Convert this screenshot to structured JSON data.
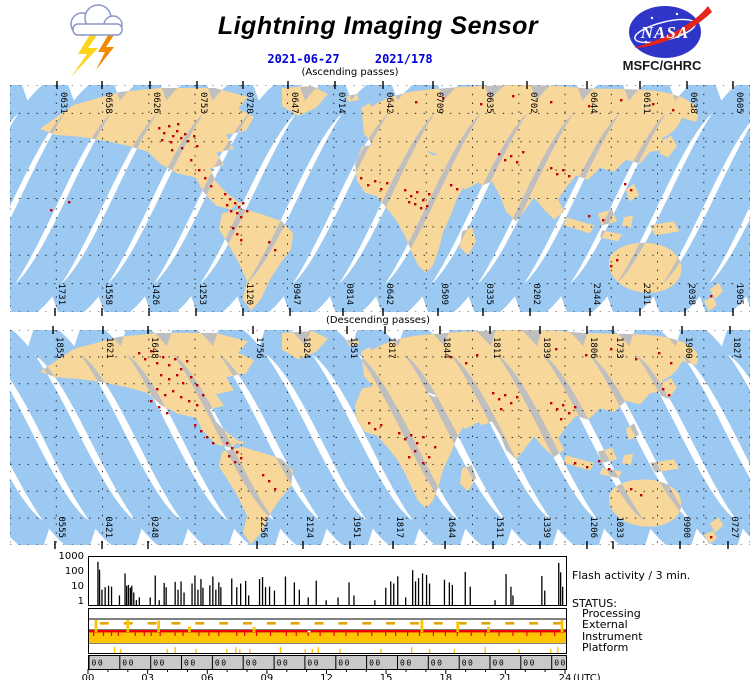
{
  "header": {
    "title": "Lightning Imaging Sensor",
    "date_iso": "2021-06-27",
    "date_doy": "2021/178",
    "agency": "MSFC/GHRC",
    "logo_text": "NASA"
  },
  "labels": {
    "status_heading": "STATUS:"
  },
  "colors": {
    "swath_blue": "#9CC9F2",
    "land_swath": "#F8D79B",
    "land_gray": "#BFBFBF",
    "lightning_red": "#C30000",
    "gold": "#FFC400",
    "gold_dark": "#DFA600",
    "red_line": "#EE0000",
    "band_gray": "#C9C9C9",
    "date_blue": "#0000D8",
    "nasa_blue": "#2E35C8",
    "nasa_red": "#E5251C",
    "bolt_yellow": "#FFD21C",
    "bolt_orange": "#F08A00",
    "cloud_fill": "#FFFFFF",
    "cloud_stroke": "#8B95C9"
  },
  "maps": {
    "ascending": {
      "caption": "(Ascending passes)",
      "direction": "asc",
      "top_labels": [
        [
          "0631",
          47
        ],
        [
          "0658",
          92
        ],
        [
          "0626",
          140
        ],
        [
          "0753",
          187
        ],
        [
          "0720",
          233
        ],
        [
          "0647",
          278
        ],
        [
          "0714",
          325
        ],
        [
          "0642",
          373
        ],
        [
          "0709",
          423
        ],
        [
          "0635",
          473
        ],
        [
          "0702",
          517
        ],
        [
          "0644",
          577
        ],
        [
          "0611",
          630
        ],
        [
          "0638",
          677
        ],
        [
          "0605",
          723
        ]
      ],
      "bottom_labels": [
        [
          "1731",
          45
        ],
        [
          "1558",
          92
        ],
        [
          "1426",
          139
        ],
        [
          "1253",
          186
        ],
        [
          "1120",
          233
        ],
        [
          "0947",
          280
        ],
        [
          "0814",
          333
        ],
        [
          "0642",
          373
        ],
        [
          "0509",
          428
        ],
        [
          "0335",
          473
        ],
        [
          "0202",
          520
        ],
        [
          "2344",
          580
        ],
        [
          "2211",
          630
        ],
        [
          "2038",
          675
        ],
        [
          "1905",
          723
        ]
      ],
      "lightning": [
        [
          148,
          42
        ],
        [
          153,
          47
        ],
        [
          158,
          40
        ],
        [
          162,
          50
        ],
        [
          166,
          45
        ],
        [
          170,
          52
        ],
        [
          174,
          48
        ],
        [
          160,
          56
        ],
        [
          151,
          54
        ],
        [
          177,
          55
        ],
        [
          183,
          50
        ],
        [
          167,
          38
        ],
        [
          171,
          62
        ],
        [
          161,
          64
        ],
        [
          186,
          60
        ],
        [
          180,
          74
        ],
        [
          188,
          84
        ],
        [
          194,
          92
        ],
        [
          200,
          100
        ],
        [
          214,
          108
        ],
        [
          219,
          113
        ],
        [
          224,
          117
        ],
        [
          228,
          121
        ],
        [
          232,
          117
        ],
        [
          226,
          127
        ],
        [
          220,
          125
        ],
        [
          216,
          119
        ],
        [
          230,
          131
        ],
        [
          236,
          125
        ],
        [
          222,
          142
        ],
        [
          226,
          148
        ],
        [
          230,
          154
        ],
        [
          258,
          156
        ],
        [
          264,
          164
        ],
        [
          350,
          92
        ],
        [
          357,
          99
        ],
        [
          364,
          95
        ],
        [
          370,
          103
        ],
        [
          376,
          97
        ],
        [
          394,
          104
        ],
        [
          400,
          110
        ],
        [
          406,
          106
        ],
        [
          412,
          114
        ],
        [
          418,
          108
        ],
        [
          404,
          118
        ],
        [
          398,
          116
        ],
        [
          410,
          122
        ],
        [
          416,
          120
        ],
        [
          440,
          99
        ],
        [
          446,
          103
        ],
        [
          488,
          68
        ],
        [
          494,
          74
        ],
        [
          500,
          70
        ],
        [
          506,
          76
        ],
        [
          512,
          66
        ],
        [
          540,
          82
        ],
        [
          546,
          88
        ],
        [
          552,
          84
        ],
        [
          558,
          90
        ],
        [
          405,
          16
        ],
        [
          432,
          12
        ],
        [
          470,
          18
        ],
        [
          502,
          10
        ],
        [
          540,
          16
        ],
        [
          578,
          20
        ],
        [
          610,
          14
        ],
        [
          642,
          18
        ],
        [
          662,
          24
        ],
        [
          614,
          98
        ],
        [
          620,
          104
        ],
        [
          578,
          130
        ],
        [
          592,
          134
        ],
        [
          600,
          180
        ],
        [
          606,
          174
        ],
        [
          58,
          116
        ],
        [
          40,
          124
        ],
        [
          700,
          210
        ]
      ]
    },
    "descending": {
      "caption": "(Descending passes)",
      "direction": "desc",
      "top_labels": [
        [
          "1855",
          43
        ],
        [
          "1621",
          93
        ],
        [
          "1648",
          138
        ],
        [
          "1756",
          243
        ],
        [
          "1824",
          290
        ],
        [
          "1851",
          337
        ],
        [
          "1817",
          375
        ],
        [
          "1844",
          430
        ],
        [
          "1811",
          480
        ],
        [
          "1839",
          530
        ],
        [
          "1806",
          577
        ],
        [
          "1733",
          603
        ],
        [
          "1900",
          672
        ],
        [
          "1827",
          720
        ]
      ],
      "bottom_labels": [
        [
          "0555",
          45
        ],
        [
          "0421",
          92
        ],
        [
          "0248",
          138
        ],
        [
          "2256",
          247
        ],
        [
          "2124",
          293
        ],
        [
          "1951",
          340
        ],
        [
          "1817",
          383
        ],
        [
          "1644",
          435
        ],
        [
          "1511",
          483
        ],
        [
          "1339",
          530
        ],
        [
          "1206",
          577
        ],
        [
          "1033",
          603
        ],
        [
          "0900",
          670
        ],
        [
          "0727",
          718
        ]
      ],
      "lightning": [
        [
          128,
          22
        ],
        [
          134,
          28
        ],
        [
          140,
          20
        ],
        [
          146,
          32
        ],
        [
          152,
          26
        ],
        [
          158,
          34
        ],
        [
          164,
          28
        ],
        [
          170,
          38
        ],
        [
          176,
          30
        ],
        [
          150,
          44
        ],
        [
          158,
          48
        ],
        [
          166,
          44
        ],
        [
          172,
          52
        ],
        [
          180,
          46
        ],
        [
          186,
          54
        ],
        [
          162,
          60
        ],
        [
          154,
          64
        ],
        [
          146,
          58
        ],
        [
          170,
          66
        ],
        [
          178,
          70
        ],
        [
          186,
          74
        ],
        [
          192,
          64
        ],
        [
          140,
          70
        ],
        [
          148,
          76
        ],
        [
          156,
          82
        ],
        [
          184,
          94
        ],
        [
          190,
          100
        ],
        [
          196,
          106
        ],
        [
          202,
          112
        ],
        [
          216,
          112
        ],
        [
          221,
          117
        ],
        [
          226,
          121
        ],
        [
          230,
          127
        ],
        [
          224,
          131
        ],
        [
          218,
          125
        ],
        [
          252,
          144
        ],
        [
          258,
          150
        ],
        [
          264,
          158
        ],
        [
          358,
          92
        ],
        [
          364,
          98
        ],
        [
          370,
          94
        ],
        [
          388,
          102
        ],
        [
          394,
          108
        ],
        [
          400,
          104
        ],
        [
          406,
          112
        ],
        [
          412,
          106
        ],
        [
          404,
          120
        ],
        [
          398,
          126
        ],
        [
          412,
          132
        ],
        [
          418,
          126
        ],
        [
          424,
          116
        ],
        [
          482,
          62
        ],
        [
          488,
          68
        ],
        [
          494,
          64
        ],
        [
          500,
          72
        ],
        [
          506,
          66
        ],
        [
          490,
          78
        ],
        [
          540,
          72
        ],
        [
          546,
          78
        ],
        [
          552,
          74
        ],
        [
          558,
          82
        ],
        [
          564,
          76
        ],
        [
          550,
          88
        ],
        [
          564,
          132
        ],
        [
          576,
          136
        ],
        [
          588,
          130
        ],
        [
          598,
          138
        ],
        [
          545,
          18
        ],
        [
          575,
          24
        ],
        [
          600,
          18
        ],
        [
          625,
          28
        ],
        [
          648,
          22
        ],
        [
          660,
          32
        ],
        [
          440,
          26
        ],
        [
          455,
          32
        ],
        [
          466,
          24
        ],
        [
          652,
          58
        ],
        [
          658,
          64
        ],
        [
          620,
          158
        ],
        [
          630,
          164
        ],
        [
          700,
          206
        ]
      ]
    }
  },
  "chart_data": [
    {
      "type": "bar",
      "name": "flash_activity",
      "title": "Flash activity / 3 min.",
      "ylog": true,
      "ylim": [
        1,
        1000
      ],
      "yticks": [
        "1000",
        "100",
        "10",
        "1"
      ],
      "xlim_hours": [
        0,
        24
      ],
      "xticks": [
        "00",
        "03",
        "06",
        "09",
        "12",
        "15",
        "18",
        "21",
        "24"
      ],
      "xlabel": "(UTC)",
      "points": [
        [
          0.42,
          500
        ],
        [
          0.5,
          160
        ],
        [
          0.62,
          9
        ],
        [
          0.78,
          13
        ],
        [
          0.95,
          16
        ],
        [
          1.1,
          14
        ],
        [
          1.5,
          4
        ],
        [
          1.78,
          95
        ],
        [
          1.86,
          16
        ],
        [
          1.95,
          18
        ],
        [
          2.05,
          12
        ],
        [
          2.12,
          16
        ],
        [
          2.22,
          6
        ],
        [
          2.35,
          2
        ],
        [
          2.5,
          3
        ],
        [
          3.05,
          3
        ],
        [
          3.3,
          70
        ],
        [
          3.5,
          2
        ],
        [
          3.75,
          24
        ],
        [
          3.85,
          13
        ],
        [
          4.3,
          28
        ],
        [
          4.45,
          9
        ],
        [
          4.6,
          30
        ],
        [
          4.75,
          6
        ],
        [
          5.15,
          22
        ],
        [
          5.3,
          70
        ],
        [
          5.45,
          9
        ],
        [
          5.6,
          42
        ],
        [
          5.7,
          12
        ],
        [
          6.05,
          17
        ],
        [
          6.2,
          60
        ],
        [
          6.35,
          9
        ],
        [
          6.5,
          26
        ],
        [
          6.6,
          13
        ],
        [
          7.15,
          45
        ],
        [
          7.4,
          13
        ],
        [
          7.6,
          22
        ],
        [
          7.85,
          32
        ],
        [
          8.0,
          4
        ],
        [
          8.55,
          42
        ],
        [
          8.7,
          56
        ],
        [
          8.85,
          13
        ],
        [
          9.05,
          14
        ],
        [
          9.3,
          8
        ],
        [
          9.85,
          60
        ],
        [
          10.3,
          26
        ],
        [
          10.55,
          9
        ],
        [
          11.0,
          3
        ],
        [
          11.4,
          33
        ],
        [
          11.9,
          2
        ],
        [
          12.5,
          3
        ],
        [
          13.05,
          26
        ],
        [
          13.3,
          4
        ],
        [
          14.35,
          2
        ],
        [
          14.9,
          12
        ],
        [
          15.15,
          30
        ],
        [
          15.3,
          22
        ],
        [
          15.5,
          62
        ],
        [
          15.9,
          3
        ],
        [
          16.25,
          150
        ],
        [
          16.4,
          30
        ],
        [
          16.55,
          48
        ],
        [
          16.75,
          95
        ],
        [
          16.95,
          75
        ],
        [
          17.1,
          22
        ],
        [
          17.85,
          38
        ],
        [
          18.1,
          26
        ],
        [
          18.25,
          18
        ],
        [
          18.9,
          115
        ],
        [
          19.15,
          14
        ],
        [
          20.4,
          2
        ],
        [
          20.95,
          85
        ],
        [
          21.2,
          14
        ],
        [
          21.3,
          4
        ],
        [
          22.75,
          65
        ],
        [
          22.9,
          8
        ],
        [
          23.6,
          430
        ],
        [
          23.7,
          110
        ],
        [
          23.8,
          14
        ]
      ]
    },
    {
      "type": "status-timeline",
      "rows": [
        "Processing",
        "External",
        "Instrument",
        "Platform"
      ],
      "processing": {
        "events": []
      },
      "external": {
        "dash_start_h": 0.55,
        "dash_period_h": 1.2,
        "dash_len_h": 0.45,
        "spikes": [
          [
            0.35,
            1
          ],
          [
            1.95,
            1
          ],
          [
            3.5,
            0.95
          ],
          [
            5.05,
            0.35
          ],
          [
            8.3,
            0.3
          ],
          [
            16.75,
            1
          ],
          [
            18.55,
            0.85
          ],
          [
            20.1,
            0.3
          ],
          [
            23.8,
            1
          ]
        ]
      },
      "instrument": {
        "line_gap_h": [
          11.0,
          11.15
        ],
        "red_tick_hours": [
          0.2,
          0.7,
          1.1,
          1.45,
          2.3,
          2.75,
          3.1,
          3.55,
          4.3,
          4.7,
          5.5,
          6.0,
          6.5,
          7.4,
          7.8,
          8.4,
          9.1,
          9.9,
          10.4,
          11.0,
          11.6,
          12.3,
          12.9,
          13.5,
          14.2,
          14.9,
          15.4,
          16.0,
          16.6,
          17.3,
          17.9,
          18.5,
          19.2,
          19.9,
          20.6,
          21.3,
          22.0,
          22.7,
          23.4
        ]
      },
      "platform": {
        "spikes_h": [
          1.25,
          1.55,
          3.9,
          4.3,
          5.35,
          6.9,
          7.35,
          7.55,
          8.05,
          9.6,
          10.85,
          11.2,
          11.5,
          12.6,
          14.65,
          16.2,
          17.1,
          18.35,
          19.9,
          21.6,
          23.2,
          23.55
        ]
      },
      "orbit_band": {
        "label": "00",
        "period_h": 1.552
      },
      "time_axis": {
        "major_ticks": [
          "00",
          "03",
          "06",
          "09",
          "12",
          "15",
          "18",
          "21",
          "24"
        ],
        "minor_every_h": 1,
        "suffix": "(UTC)"
      }
    }
  ]
}
